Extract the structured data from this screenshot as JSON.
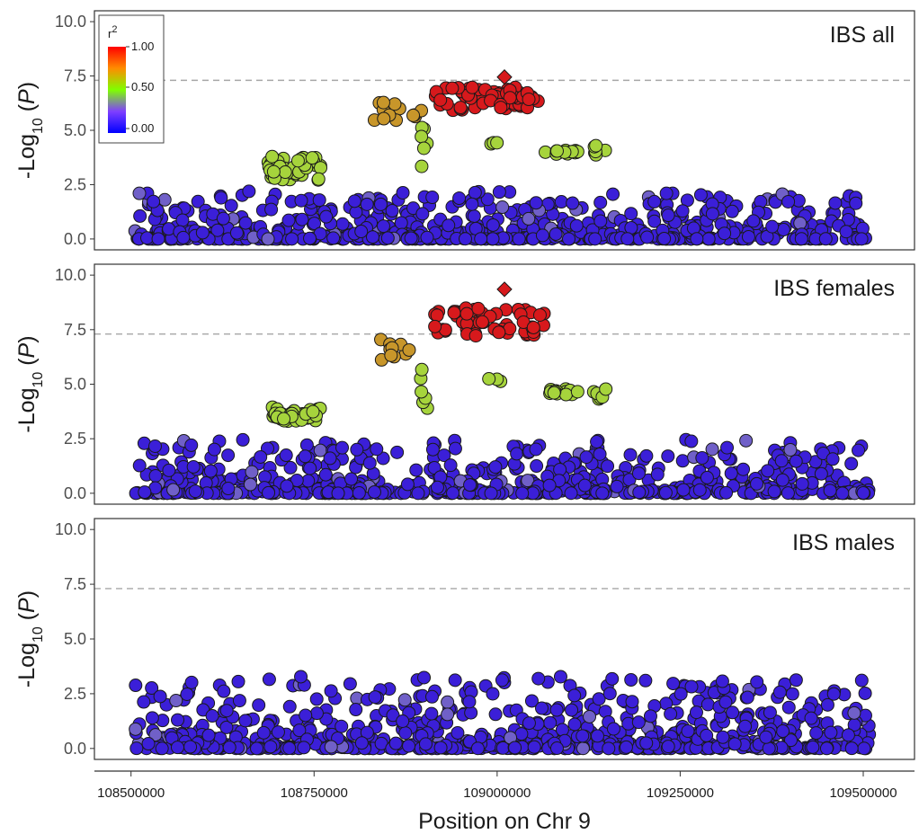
{
  "chart_data": {
    "type": "scatter",
    "x_axis": {
      "label": "Position on Chr 9",
      "range": [
        108450000,
        109570000
      ],
      "ticks": [
        108500000,
        108750000,
        109000000,
        109250000,
        109500000
      ],
      "tick_labels": [
        "108500000",
        "108750000",
        "109000000",
        "109250000",
        "109500000"
      ]
    },
    "y_axis": {
      "label_prefix": "-Log",
      "label_subscript": "10",
      "label_paren_open": "(",
      "label_var": "P",
      "label_paren_close": ")",
      "range": [
        -0.5,
        10.5
      ],
      "ticks": [
        0,
        2.5,
        5,
        7.5,
        10
      ],
      "tick_labels": [
        "0.0",
        "2.5",
        "5.0",
        "7.5",
        "10.0"
      ]
    },
    "significance_threshold": 7.3,
    "legend": {
      "title_base": "r",
      "title_sup": "2",
      "labels": [
        "1.00",
        "0.50",
        "0.00"
      ],
      "placement": "top-left of first panel",
      "colors": [
        "#ff0000",
        "#7fff00",
        "#0000ff"
      ]
    },
    "colors": {
      "r2_high": "#d7191c",
      "r2_upper_mid": "#c8962a",
      "r2_mid": "#a6d43c",
      "r2_mid_low": "#8da08f",
      "r2_low": "#7060c8",
      "r2_none": "#3b1fd8",
      "point_outline": "#1a1a1a",
      "threshold_line": "#a6a6a6"
    },
    "panels": [
      {
        "title": "IBS all",
        "lead_snp": {
          "x": 109010000,
          "y": 7.45,
          "shape": "diamond",
          "r2": 1.0
        },
        "clusters": [
          {
            "x": [
              108685000,
              108760000
            ],
            "y": [
              2.7,
              3.8
            ],
            "n": 44,
            "color": "r2_mid"
          },
          {
            "x": [
              108830000,
              108870000
            ],
            "y": [
              5.3,
              6.3
            ],
            "n": 10,
            "color": "r2_upper_mid"
          },
          {
            "x": [
              108880000,
              108900000
            ],
            "y": [
              5.6,
              6.1
            ],
            "n": 4,
            "color": "r2_upper_mid"
          },
          {
            "x": [
              108895000,
              108905000
            ],
            "y": [
              3.2,
              5.3
            ],
            "n": 6,
            "color": "r2_mid"
          },
          {
            "x": [
              108915000,
              109060000
            ],
            "y": [
              5.9,
              7.0
            ],
            "n": 60,
            "color": "r2_high"
          },
          {
            "x": [
              108985000,
              109005000
            ],
            "y": [
              4.35,
              4.45
            ],
            "n": 3,
            "color": "r2_mid"
          },
          {
            "x": [
              109065000,
              109110000
            ],
            "y": [
              3.9,
              4.1
            ],
            "n": 16,
            "color": "r2_mid"
          },
          {
            "x": [
              109130000,
              109150000
            ],
            "y": [
              3.8,
              4.3
            ],
            "n": 6,
            "color": "r2_mid"
          }
        ],
        "background": {
          "x": [
            108505000,
            109510000
          ],
          "y": [
            0.0,
            2.2
          ],
          "n": 650,
          "color": "r2_none"
        }
      },
      {
        "title": "IBS females",
        "lead_snp": {
          "x": 109010000,
          "y": 9.35,
          "shape": "diamond",
          "r2": 1.0
        },
        "clusters": [
          {
            "x": [
              108685000,
              108760000
            ],
            "y": [
              3.3,
              4.0
            ],
            "n": 40,
            "color": "r2_mid"
          },
          {
            "x": [
              108830000,
              108880000
            ],
            "y": [
              6.1,
              7.2
            ],
            "n": 10,
            "color": "r2_upper_mid"
          },
          {
            "x": [
              108895000,
              108905000
            ],
            "y": [
              3.9,
              5.9
            ],
            "n": 6,
            "color": "r2_mid"
          },
          {
            "x": [
              108915000,
              109065000
            ],
            "y": [
              7.2,
              8.5
            ],
            "n": 60,
            "color": "r2_high"
          },
          {
            "x": [
              108985000,
              109005000
            ],
            "y": [
              5.1,
              5.3
            ],
            "n": 3,
            "color": "r2_mid"
          },
          {
            "x": [
              109065000,
              109110000
            ],
            "y": [
              4.5,
              4.8
            ],
            "n": 16,
            "color": "r2_mid"
          },
          {
            "x": [
              109130000,
              109150000
            ],
            "y": [
              4.2,
              4.9
            ],
            "n": 6,
            "color": "r2_mid"
          }
        ],
        "background": {
          "x": [
            108505000,
            109510000
          ],
          "y": [
            0.0,
            2.5
          ],
          "n": 650,
          "color": "r2_none"
        }
      },
      {
        "title": "IBS males",
        "lead_snp": null,
        "clusters": [],
        "background": {
          "x": [
            108505000,
            109510000
          ],
          "y": [
            0.0,
            3.3
          ],
          "n": 750,
          "color": "r2_none"
        }
      }
    ]
  }
}
